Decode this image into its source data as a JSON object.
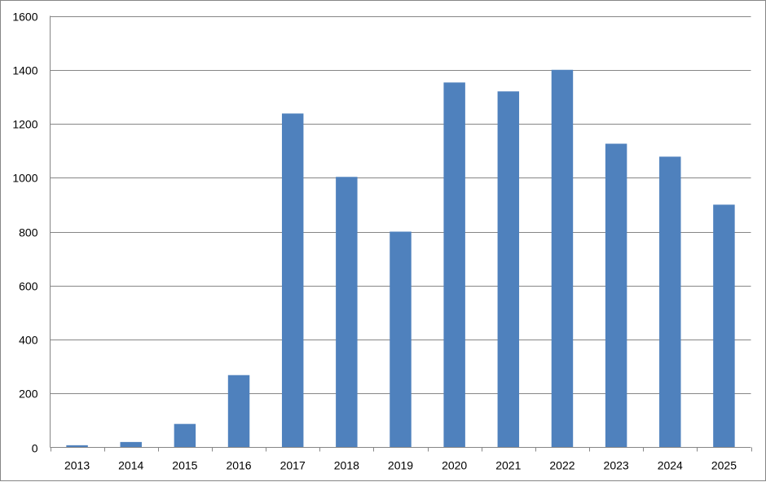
{
  "chart_data": {
    "type": "bar",
    "title": "",
    "xlabel": "",
    "ylabel": "",
    "categories": [
      "2013",
      "2014",
      "2015",
      "2016",
      "2017",
      "2018",
      "2019",
      "2020",
      "2021",
      "2022",
      "2023",
      "2024",
      "2025"
    ],
    "series": [
      {
        "values": [
          8,
          20,
          87,
          268,
          1238,
          1003,
          800,
          1353,
          1320,
          1400,
          1126,
          1078,
          900
        ],
        "color": "#4f81bd"
      }
    ],
    "ylim": [
      0,
      1600
    ],
    "yticks": [
      "0",
      "200",
      "400",
      "600",
      "800",
      "1000",
      "1200",
      "1400",
      "1600"
    ],
    "grid": true,
    "legend": "none",
    "gridline_color": "#868686",
    "axis_color": "#868686"
  }
}
